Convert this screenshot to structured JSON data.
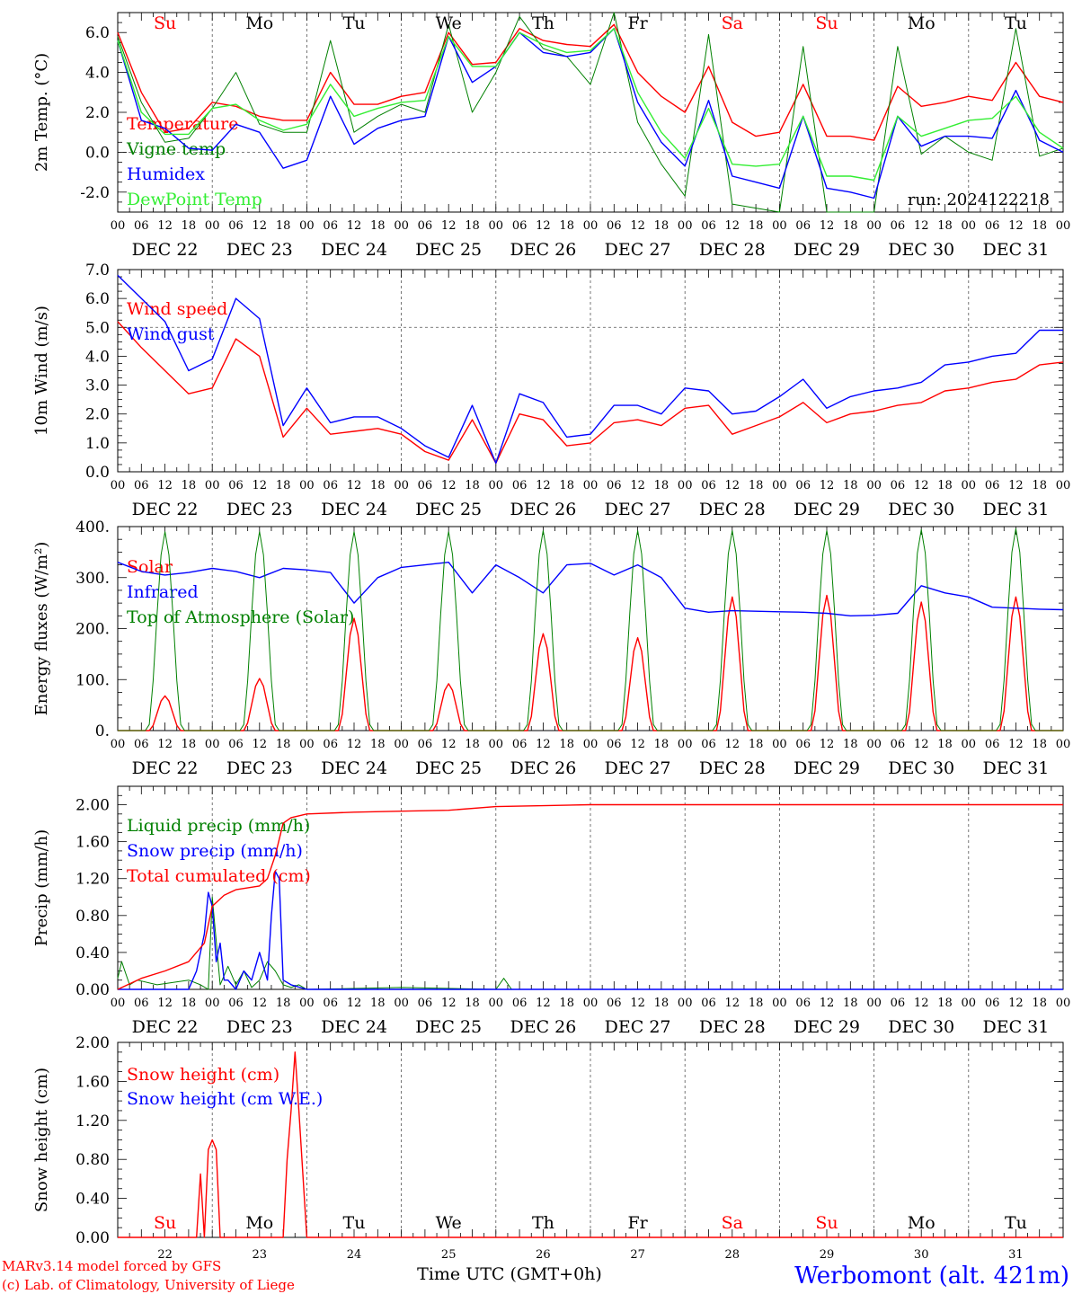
{
  "colors": {
    "red": "#ff0000",
    "green": "#008000",
    "blue": "#0000ff",
    "lightgreen": "#33ee33",
    "axis": "#000000",
    "grid": "#555555"
  },
  "days_top": [
    "Su",
    "Mo",
    "Tu",
    "We",
    "Th",
    "Fr",
    "Sa",
    "Su",
    "Mo",
    "Tu"
  ],
  "weekend_days": [
    0,
    6,
    7
  ],
  "hour_ticks": [
    "00",
    "06",
    "12",
    "18"
  ],
  "hour_tick_end": "00",
  "date_labels": [
    "DEC 22",
    "DEC 23",
    "DEC 24",
    "DEC 25",
    "DEC 26",
    "DEC 27",
    "DEC 28",
    "DEC 29",
    "DEC 30",
    "DEC 31"
  ],
  "bottom_day_numbers": [
    "22",
    "23",
    "24",
    "25",
    "26",
    "27",
    "28",
    "29",
    "30",
    "31"
  ],
  "xlabel": "Time UTC (GMT+0h)",
  "footer": {
    "credit_line1": "MARv3.14 model forced by GFS",
    "credit_line2": "(c) Lab. of Climatology, University of Liege",
    "station": "Werbomont (alt. 421m)"
  },
  "chart_data": [
    {
      "type": "line",
      "ylabel": "2m Temp. (°C)",
      "ylim": [
        -3.0,
        7.0
      ],
      "yticks": [
        -2.0,
        0.0,
        2.0,
        4.0,
        6.0
      ],
      "ytick_labels": [
        "-2.0",
        "0.0",
        "2.0",
        "4.0",
        "6.0"
      ],
      "hline": 0.0,
      "annotation": "run: 2024122218",
      "x_unit": "hours since DEC 22 00 UTC",
      "series": [
        {
          "name": "Temperature",
          "color": "red",
          "x": [
            0,
            6,
            12,
            18,
            24,
            30,
            36,
            42,
            48,
            54,
            60,
            66,
            72,
            78,
            84,
            90,
            96,
            102,
            108,
            114,
            120,
            126,
            132,
            138,
            144,
            150,
            156,
            162,
            168,
            174,
            180,
            186,
            192,
            198,
            204,
            210,
            216,
            222,
            228,
            234,
            240
          ],
          "values": [
            6.0,
            3.0,
            1.0,
            1.2,
            2.5,
            2.3,
            1.8,
            1.6,
            1.6,
            4.0,
            2.4,
            2.4,
            2.8,
            3.0,
            6.0,
            4.4,
            4.5,
            6.2,
            5.6,
            5.4,
            5.3,
            6.4,
            4.0,
            2.8,
            2.0,
            4.3,
            1.5,
            0.8,
            1.0,
            3.4,
            0.8,
            0.8,
            0.6,
            3.3,
            2.3,
            2.5,
            2.8,
            2.6,
            4.5,
            2.8,
            2.5
          ]
        },
        {
          "name": "Vigne temp",
          "color": "green",
          "x": [
            0,
            6,
            12,
            18,
            24,
            30,
            36,
            42,
            48,
            54,
            60,
            66,
            72,
            78,
            84,
            90,
            96,
            102,
            108,
            114,
            120,
            126,
            132,
            138,
            144,
            150,
            156,
            162,
            168,
            174,
            180,
            186,
            192,
            198,
            204,
            210,
            216,
            222,
            228,
            234,
            240
          ],
          "values": [
            5.8,
            2.5,
            0.5,
            0.7,
            2.2,
            4.0,
            1.4,
            1.0,
            1.0,
            5.6,
            1.0,
            1.8,
            2.4,
            2.0,
            6.4,
            2.0,
            4.0,
            6.8,
            5.2,
            4.8,
            3.4,
            7.0,
            1.5,
            -0.6,
            -2.2,
            5.9,
            -2.6,
            -2.8,
            -3.0,
            5.3,
            -3.2,
            -3.4,
            -3.5,
            5.3,
            -0.1,
            0.8,
            0.0,
            -0.4,
            6.2,
            -0.2,
            0.2
          ]
        },
        {
          "name": "Humidex",
          "color": "blue",
          "x": [
            0,
            6,
            12,
            18,
            24,
            30,
            36,
            42,
            48,
            54,
            60,
            66,
            72,
            78,
            84,
            90,
            96,
            102,
            108,
            114,
            120,
            126,
            132,
            138,
            144,
            150,
            156,
            162,
            168,
            174,
            180,
            186,
            192,
            198,
            204,
            210,
            216,
            222,
            228,
            234,
            240
          ],
          "values": [
            5.6,
            1.6,
            1.2,
            0.2,
            0.1,
            1.4,
            1.0,
            -0.8,
            -0.4,
            2.8,
            0.4,
            1.2,
            1.6,
            1.8,
            5.8,
            3.5,
            4.3,
            6.0,
            5.0,
            4.8,
            5.0,
            6.2,
            2.5,
            0.5,
            -0.7,
            2.6,
            -1.2,
            -1.5,
            -1.8,
            1.8,
            -1.8,
            -2.0,
            -2.3,
            1.8,
            0.3,
            0.8,
            0.8,
            0.7,
            3.1,
            0.6,
            0.0
          ]
        },
        {
          "name": "DewPoint Temp",
          "color": "lightgreen",
          "x": [
            0,
            6,
            12,
            18,
            24,
            30,
            36,
            42,
            48,
            54,
            60,
            66,
            72,
            78,
            84,
            90,
            96,
            102,
            108,
            114,
            120,
            126,
            132,
            138,
            144,
            150,
            156,
            162,
            168,
            174,
            180,
            186,
            192,
            198,
            204,
            210,
            216,
            222,
            228,
            234,
            240
          ],
          "values": [
            5.6,
            2.0,
            0.9,
            0.9,
            2.2,
            2.4,
            1.6,
            1.1,
            1.4,
            3.4,
            1.8,
            2.2,
            2.5,
            2.6,
            5.8,
            4.3,
            4.3,
            6.0,
            5.4,
            5.0,
            5.1,
            6.2,
            3.0,
            1.0,
            -0.3,
            2.2,
            -0.6,
            -0.7,
            -0.6,
            1.8,
            -1.2,
            -1.2,
            -1.4,
            1.8,
            0.8,
            1.2,
            1.6,
            1.7,
            2.8,
            1.0,
            0.2
          ]
        }
      ]
    },
    {
      "type": "line",
      "ylabel": "10m Wind (m/s)",
      "ylim": [
        0.0,
        7.0
      ],
      "yticks": [
        0.0,
        1.0,
        2.0,
        3.0,
        4.0,
        5.0,
        6.0,
        7.0
      ],
      "ytick_labels": [
        "0.0",
        "1.0",
        "2.0",
        "3.0",
        "4.0",
        "5.0",
        "6.0",
        "7.0"
      ],
      "hline": 5.0,
      "x_unit": "hours since DEC 22 00 UTC",
      "series": [
        {
          "name": "Wind speed",
          "color": "red",
          "x": [
            0,
            6,
            12,
            18,
            24,
            30,
            36,
            42,
            48,
            54,
            60,
            66,
            72,
            78,
            84,
            90,
            96,
            102,
            108,
            114,
            120,
            126,
            132,
            138,
            144,
            150,
            156,
            162,
            168,
            174,
            180,
            186,
            192,
            198,
            204,
            210,
            216,
            222,
            228,
            234,
            240
          ],
          "values": [
            5.2,
            4.3,
            3.5,
            2.7,
            2.9,
            4.6,
            4.0,
            1.2,
            2.2,
            1.3,
            1.4,
            1.5,
            1.3,
            0.7,
            0.4,
            1.8,
            0.3,
            2.0,
            1.8,
            0.9,
            1.0,
            1.7,
            1.8,
            1.6,
            2.2,
            2.3,
            1.3,
            1.6,
            1.9,
            2.4,
            1.7,
            2.0,
            2.1,
            2.3,
            2.4,
            2.8,
            2.9,
            3.1,
            3.2,
            3.7,
            3.8
          ]
        },
        {
          "name": "Wind gust",
          "color": "blue",
          "x": [
            0,
            6,
            12,
            18,
            24,
            30,
            36,
            42,
            48,
            54,
            60,
            66,
            72,
            78,
            84,
            90,
            96,
            102,
            108,
            114,
            120,
            126,
            132,
            138,
            144,
            150,
            156,
            162,
            168,
            174,
            180,
            186,
            192,
            198,
            204,
            210,
            216,
            222,
            228,
            234,
            240
          ],
          "values": [
            6.8,
            6.0,
            5.2,
            3.5,
            3.9,
            6.0,
            5.3,
            1.6,
            2.9,
            1.7,
            1.9,
            1.9,
            1.5,
            0.9,
            0.5,
            2.3,
            0.3,
            2.7,
            2.4,
            1.2,
            1.3,
            2.3,
            2.3,
            2.0,
            2.9,
            2.8,
            2.0,
            2.1,
            2.6,
            3.2,
            2.2,
            2.6,
            2.8,
            2.9,
            3.1,
            3.7,
            3.8,
            4.0,
            4.1,
            4.9,
            4.9
          ]
        }
      ]
    },
    {
      "type": "line",
      "ylabel": "Energy fluxes (W/m²)",
      "ylim": [
        0,
        400
      ],
      "yticks": [
        0,
        100,
        200,
        300,
        400
      ],
      "ytick_labels": [
        "0.",
        "100.",
        "200.",
        "300.",
        "400."
      ],
      "x_unit": "hours since DEC 22 00 UTC",
      "series": [
        {
          "name": "Solar",
          "color": "red",
          "daily_peak_hour": 12,
          "half_width_hours": 4,
          "daily_peaks": [
            68,
            102,
            220,
            92,
            190,
            182,
            262,
            265,
            252,
            262
          ]
        },
        {
          "name": "Infrared",
          "color": "blue",
          "x": [
            0,
            6,
            12,
            18,
            24,
            30,
            36,
            42,
            48,
            54,
            60,
            66,
            72,
            78,
            84,
            90,
            96,
            102,
            108,
            114,
            120,
            126,
            132,
            138,
            144,
            150,
            156,
            162,
            168,
            174,
            180,
            186,
            192,
            198,
            204,
            210,
            216,
            222,
            228,
            234,
            240
          ],
          "values": [
            330,
            312,
            305,
            310,
            318,
            312,
            300,
            318,
            315,
            310,
            250,
            300,
            320,
            325,
            330,
            270,
            325,
            300,
            270,
            325,
            328,
            305,
            325,
            300,
            240,
            232,
            235,
            234,
            233,
            232,
            230,
            225,
            226,
            230,
            284,
            270,
            262,
            242,
            240,
            238,
            237
          ]
        },
        {
          "name": "Top of Atmosphere (Solar)",
          "color": "green",
          "daily_peak_hour": 12,
          "half_width_hours": 4.5,
          "daily_peaks": [
            390,
            390,
            390,
            390,
            392,
            392,
            392,
            392,
            394,
            396
          ]
        }
      ]
    },
    {
      "type": "line",
      "ylabel": "Precip (mm/h)",
      "ylim": [
        0.0,
        2.2
      ],
      "yticks": [
        0.0,
        0.4,
        0.8,
        1.2,
        1.6,
        2.0
      ],
      "ytick_labels": [
        "0.00",
        "0.40",
        "0.80",
        "1.20",
        "1.60",
        "2.00"
      ],
      "x_unit": "hours since DEC 22 00 UTC",
      "series": [
        {
          "name": "Liquid precip (mm/h)",
          "color": "green",
          "x": [
            0,
            1,
            3,
            5,
            10,
            18,
            21,
            23,
            24,
            26,
            28,
            30,
            32,
            34,
            36,
            38,
            40,
            42,
            44,
            46,
            48,
            72,
            96,
            98,
            100,
            240
          ],
          "values": [
            0.12,
            0.3,
            0.05,
            0.1,
            0.05,
            0.1,
            0.05,
            0.0,
            1.0,
            0.05,
            0.25,
            0.05,
            0.2,
            0.02,
            0.1,
            0.3,
            0.2,
            0.05,
            0.02,
            0.05,
            0.0,
            0.02,
            0.0,
            0.12,
            0.0,
            0.0
          ]
        },
        {
          "name": "Snow precip (mm/h)",
          "color": "blue",
          "x": [
            0,
            18,
            20,
            22,
            23,
            24,
            25,
            26,
            27,
            28,
            30,
            32,
            34,
            36,
            38,
            39,
            40,
            41,
            42,
            44,
            48,
            96,
            240
          ],
          "values": [
            0.0,
            0.0,
            0.2,
            0.6,
            1.05,
            0.9,
            0.3,
            0.5,
            0.1,
            0.1,
            0.0,
            0.2,
            0.1,
            0.4,
            0.1,
            0.8,
            1.28,
            1.2,
            0.1,
            0.05,
            0.0,
            0.0,
            0.0
          ]
        },
        {
          "name": "Total cumulated (cm)",
          "color": "red",
          "x": [
            0,
            6,
            12,
            18,
            22,
            24,
            27,
            30,
            36,
            38,
            40,
            42,
            44,
            48,
            60,
            72,
            84,
            96,
            108,
            120,
            144,
            240
          ],
          "values": [
            0.0,
            0.12,
            0.2,
            0.3,
            0.5,
            0.9,
            1.02,
            1.08,
            1.12,
            1.2,
            1.45,
            1.8,
            1.86,
            1.9,
            1.92,
            1.93,
            1.94,
            1.98,
            1.99,
            2.0,
            2.0,
            2.0
          ]
        }
      ]
    },
    {
      "type": "line",
      "ylabel": "Snow height (cm)",
      "ylim": [
        0.0,
        2.0
      ],
      "yticks": [
        0.0,
        0.4,
        0.8,
        1.2,
        1.6,
        2.0
      ],
      "ytick_labels": [
        "0.00",
        "0.40",
        "0.80",
        "1.20",
        "1.60",
        "2.00"
      ],
      "x_unit": "hours since DEC 22 00 UTC",
      "series": [
        {
          "name": "Snow height (cm)",
          "color": "red",
          "x": [
            0,
            20,
            21,
            22,
            23,
            24,
            25,
            26,
            42,
            43,
            44,
            45,
            46,
            48,
            240
          ],
          "values": [
            0,
            0,
            0.65,
            0,
            0.9,
            1.0,
            0.9,
            0,
            0,
            0.8,
            1.3,
            1.9,
            1.3,
            0,
            0
          ]
        },
        {
          "name": "Snow height (cm W.E.)",
          "color": "blue",
          "x": [],
          "values": []
        }
      ]
    }
  ]
}
